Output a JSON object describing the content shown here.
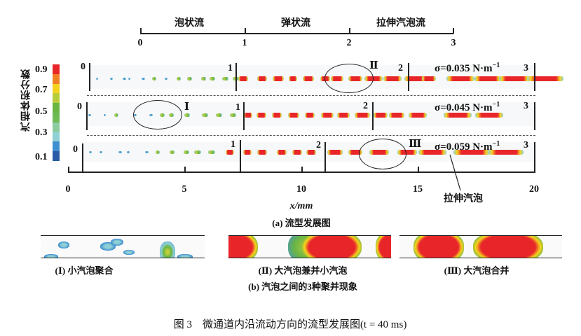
{
  "regime_axis": {
    "regimes": [
      "泡状流",
      "弹状流",
      "拉伸汽泡流"
    ],
    "ticks": [
      "0",
      "1",
      "2",
      "3"
    ]
  },
  "colorbar": {
    "title": "汽相体积分数",
    "tick_labels": [
      "0.9",
      "0.7",
      "0.5",
      "0.3",
      "0.1"
    ],
    "colors": [
      "#e8262a",
      "#f08024",
      "#f5d21e",
      "#b9cd3c",
      "#6ab545",
      "#6dbb55",
      "#8ccba0",
      "#8fd0d6",
      "#3f8fd0",
      "#2a5aa8"
    ]
  },
  "rows": [
    {
      "sigma_label": "σ=0.035 N·m",
      "exponent": "−1",
      "markers": [
        "0",
        "1",
        "2",
        "3"
      ],
      "circle_label": "Ⅱ"
    },
    {
      "sigma_label": "σ=0.045 N·m",
      "exponent": "−1",
      "markers": [
        "0",
        "1",
        "2",
        "3"
      ],
      "circle_label": "Ⅰ"
    },
    {
      "sigma_label": "σ=0.059 N·m",
      "exponent": "−1",
      "markers": [
        "0",
        "1",
        "2",
        "3"
      ],
      "circle_label": "Ⅲ"
    }
  ],
  "x_axis": {
    "label": "x/mm",
    "ticks": [
      "0",
      "5",
      "10",
      "15",
      "20"
    ],
    "range": [
      0,
      20
    ]
  },
  "annotation_stretched": "拉伸汽泡",
  "caption_a": "(a) 流型发展图",
  "panels_b": [
    {
      "caption": "(Ⅰ) 小汽泡聚合"
    },
    {
      "caption": "(Ⅱ) 大汽泡兼并小汽泡"
    },
    {
      "caption": "(Ⅲ) 大汽泡合并"
    }
  ],
  "caption_b": "(b) 汽泡之间的3种聚并现象",
  "figure_caption": "图 3　微通道内沿流动方向的流型发展图(t = 40 ms)"
}
